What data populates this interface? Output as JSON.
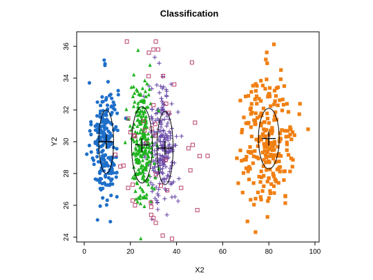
{
  "chart_data": {
    "type": "scatter",
    "title": "Classification",
    "xlabel": "X2",
    "ylabel": "Y2",
    "xlim": [
      0,
      100
    ],
    "ylim": [
      24,
      36.5
    ],
    "xticks": [
      0,
      20,
      40,
      60,
      80,
      100
    ],
    "yticks": [
      24,
      26,
      28,
      30,
      32,
      34,
      36
    ],
    "grid": false,
    "legend": "none",
    "series": [
      {
        "marker": "circle",
        "color": "#1f6fc9",
        "center": [
          9,
          30
        ],
        "sd": [
          2.8,
          1.9
        ],
        "count": 230,
        "ellipse": {
          "center": [
            9.5,
            30
          ],
          "rx": 3.2,
          "ry": 2.0
        }
      },
      {
        "marker": "triangle",
        "color": "#1fb31f",
        "center": [
          25,
          30
        ],
        "sd": [
          2.5,
          1.9
        ],
        "count": 230,
        "ellipse": {
          "center": [
            25,
            29.8
          ],
          "rx": 4.5,
          "ry": 2.4
        }
      },
      {
        "marker": "plus",
        "color": "#6a4ba8",
        "center": [
          34,
          29.7
        ],
        "sd": [
          3.2,
          2.0
        ],
        "count": 220,
        "ellipse": {
          "center": [
            35,
            29.6
          ],
          "rx": 3.5,
          "ry": 2.3
        }
      },
      {
        "marker": "square-open",
        "color": "#b8406a",
        "center": [
          30,
          29.5
        ],
        "sd": [
          9,
          2.9
        ],
        "count": 48,
        "points": [
          [
            31,
            36.4
          ],
          [
            30,
            35.8
          ],
          [
            32,
            35.8
          ],
          [
            28,
            35.6
          ],
          [
            39,
            33.6
          ],
          [
            30,
            32.3
          ],
          [
            20,
            30.6
          ],
          [
            48,
            31.2
          ],
          [
            50,
            29.1
          ],
          [
            47,
            29.8
          ],
          [
            46,
            28.2
          ],
          [
            21,
            27.3
          ],
          [
            19,
            27.1
          ],
          [
            42,
            27.1
          ],
          [
            21,
            26.3
          ],
          [
            29,
            25.9
          ],
          [
            29,
            25.4
          ],
          [
            30,
            25.2
          ],
          [
            49,
            25.7
          ],
          [
            31,
            24.9
          ],
          [
            34,
            24.1
          ],
          [
            38,
            23.9
          ],
          [
            22,
            26.0
          ],
          [
            17,
            28.5
          ]
        ]
      },
      {
        "marker": "square-filled",
        "color": "#f07f12",
        "center": [
          80,
          30.2
        ],
        "sd": [
          6.0,
          2.1
        ],
        "count": 240,
        "ellipse": {
          "center": [
            80,
            30.2
          ],
          "rx": 4.5,
          "ry": 1.9
        }
      }
    ]
  }
}
